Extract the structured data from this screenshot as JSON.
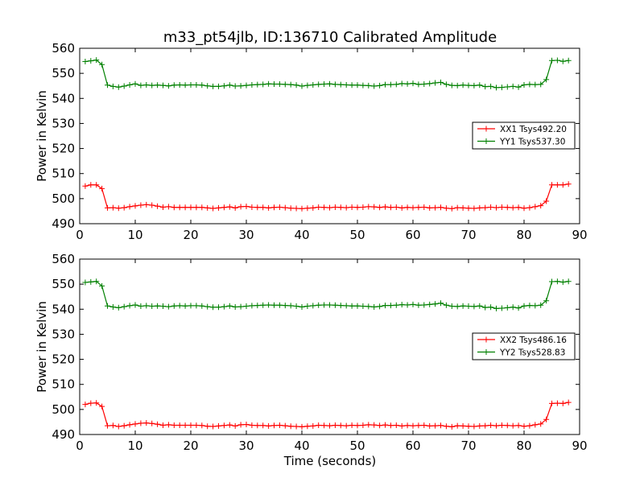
{
  "figure": {
    "title": "m33_pt54jlb, ID:136710 Calibrated Amplitude",
    "xlabel": "Time (seconds)"
  },
  "chart_data": [
    {
      "type": "line",
      "ylabel": "Power in Kelvin",
      "xlim": [
        0,
        90
      ],
      "ylim": [
        490,
        560
      ],
      "xticks": [
        0,
        10,
        20,
        30,
        40,
        50,
        60,
        70,
        80,
        90
      ],
      "yticks": [
        490,
        500,
        510,
        520,
        530,
        540,
        550,
        560
      ],
      "legend_position": "right",
      "series": [
        {
          "name": "XX1 Tsys492.20",
          "color": "#ff0000",
          "x": [
            1,
            2,
            3,
            4,
            5,
            6,
            7,
            8,
            9,
            10,
            11,
            12,
            13,
            14,
            15,
            16,
            17,
            18,
            19,
            20,
            21,
            22,
            23,
            24,
            25,
            26,
            27,
            28,
            29,
            30,
            31,
            32,
            33,
            34,
            35,
            36,
            37,
            38,
            39,
            40,
            41,
            42,
            43,
            44,
            45,
            46,
            47,
            48,
            49,
            50,
            51,
            52,
            53,
            54,
            55,
            56,
            57,
            58,
            59,
            60,
            61,
            62,
            63,
            64,
            65,
            66,
            67,
            68,
            69,
            70,
            71,
            72,
            73,
            74,
            75,
            76,
            77,
            78,
            79,
            80,
            81,
            82,
            83,
            84,
            85,
            86,
            87,
            88
          ],
          "y": [
            505,
            505.5,
            505.5,
            504,
            496.3,
            496.4,
            496.2,
            496.4,
            496.8,
            497.1,
            497.4,
            497.6,
            497.4,
            497,
            496.6,
            496.8,
            496.5,
            496.5,
            496.5,
            496.5,
            496.5,
            496.5,
            496.3,
            496.1,
            496.3,
            496.5,
            496.7,
            496.3,
            496.8,
            496.9,
            496.6,
            496.5,
            496.5,
            496.3,
            496.5,
            496.6,
            496.4,
            496.2,
            496.1,
            496,
            496.2,
            496.3,
            496.6,
            496.5,
            496.4,
            496.6,
            496.5,
            496.4,
            496.6,
            496.5,
            496.6,
            496.8,
            496.7,
            496.5,
            496.7,
            496.5,
            496.6,
            496.3,
            496.5,
            496.4,
            496.5,
            496.6,
            496.3,
            496.4,
            496.5,
            496.2,
            496,
            496.4,
            496.3,
            496.2,
            496.1,
            496.3,
            496.4,
            496.6,
            496.4,
            496.6,
            496.5,
            496.4,
            496.5,
            496.2,
            496.4,
            496.8,
            497.2,
            499,
            505.5,
            505.5,
            505.5,
            505.8
          ]
        },
        {
          "name": "YY1 Tsys537.30",
          "color": "#008000",
          "x": [
            1,
            2,
            3,
            4,
            5,
            6,
            7,
            8,
            9,
            10,
            11,
            12,
            13,
            14,
            15,
            16,
            17,
            18,
            19,
            20,
            21,
            22,
            23,
            24,
            25,
            26,
            27,
            28,
            29,
            30,
            31,
            32,
            33,
            34,
            35,
            36,
            37,
            38,
            39,
            40,
            41,
            42,
            43,
            44,
            45,
            46,
            47,
            48,
            49,
            50,
            51,
            52,
            53,
            54,
            55,
            56,
            57,
            58,
            59,
            60,
            61,
            62,
            63,
            64,
            65,
            66,
            67,
            68,
            69,
            70,
            71,
            72,
            73,
            74,
            75,
            76,
            77,
            78,
            79,
            80,
            81,
            82,
            83,
            84,
            85,
            86,
            87,
            88
          ],
          "y": [
            554.7,
            555,
            555.3,
            553.5,
            545.3,
            544.8,
            544.5,
            544.9,
            545.4,
            545.8,
            545.2,
            545.4,
            545.2,
            545.3,
            545.2,
            545,
            545.3,
            545.4,
            545.3,
            545.4,
            545.4,
            545.3,
            545,
            544.8,
            544.8,
            545,
            545.3,
            544.9,
            545,
            545.2,
            545.4,
            545.5,
            545.6,
            545.8,
            545.7,
            545.7,
            545.6,
            545.5,
            545.3,
            544.9,
            545.2,
            545.4,
            545.6,
            545.7,
            545.8,
            545.6,
            545.5,
            545.4,
            545.3,
            545.3,
            545.2,
            545.1,
            544.9,
            545.1,
            545.5,
            545.5,
            545.6,
            545.9,
            545.8,
            546,
            545.6,
            545.7,
            545.9,
            546.2,
            546.4,
            545.6,
            545.2,
            545.1,
            545.3,
            545.2,
            545.1,
            545.3,
            544.7,
            544.8,
            544.3,
            544.4,
            544.6,
            544.8,
            544.5,
            545.4,
            545.6,
            545.5,
            545.6,
            547.5,
            555.1,
            555.2,
            554.8,
            555.1
          ]
        }
      ]
    },
    {
      "type": "line",
      "ylabel": "Power in Kelvin",
      "xlim": [
        0,
        90
      ],
      "ylim": [
        490,
        560
      ],
      "xticks": [
        0,
        10,
        20,
        30,
        40,
        50,
        60,
        70,
        80,
        90
      ],
      "yticks": [
        490,
        500,
        510,
        520,
        530,
        540,
        550,
        560
      ],
      "legend_position": "right",
      "series": [
        {
          "name": "XX2 Tsys486.16",
          "color": "#ff0000",
          "x": [
            1,
            2,
            3,
            4,
            5,
            6,
            7,
            8,
            9,
            10,
            11,
            12,
            13,
            14,
            15,
            16,
            17,
            18,
            19,
            20,
            21,
            22,
            23,
            24,
            25,
            26,
            27,
            28,
            29,
            30,
            31,
            32,
            33,
            34,
            35,
            36,
            37,
            38,
            39,
            40,
            41,
            42,
            43,
            44,
            45,
            46,
            47,
            48,
            49,
            50,
            51,
            52,
            53,
            54,
            55,
            56,
            57,
            58,
            59,
            60,
            61,
            62,
            63,
            64,
            65,
            66,
            67,
            68,
            69,
            70,
            71,
            72,
            73,
            74,
            75,
            76,
            77,
            78,
            79,
            80,
            81,
            82,
            83,
            84,
            85,
            86,
            87,
            88
          ],
          "y": [
            502,
            502.5,
            502.6,
            501.2,
            493.5,
            493.6,
            493.2,
            493.5,
            493.9,
            494.2,
            494.5,
            494.6,
            494.4,
            494.1,
            493.7,
            493.9,
            493.7,
            493.7,
            493.7,
            493.7,
            493.7,
            493.6,
            493.3,
            493.2,
            493.4,
            493.6,
            493.8,
            493.4,
            493.9,
            494,
            493.7,
            493.6,
            493.6,
            493.4,
            493.6,
            493.7,
            493.5,
            493.3,
            493.2,
            493.1,
            493.3,
            493.4,
            493.7,
            493.6,
            493.5,
            493.7,
            493.6,
            493.5,
            493.7,
            493.6,
            493.7,
            493.9,
            493.8,
            493.6,
            493.8,
            493.6,
            493.7,
            493.4,
            493.6,
            493.5,
            493.6,
            493.7,
            493.4,
            493.5,
            493.6,
            493.3,
            493.1,
            493.5,
            493.4,
            493.3,
            493.2,
            493.4,
            493.5,
            493.7,
            493.5,
            493.7,
            493.6,
            493.5,
            493.6,
            493.3,
            493.5,
            493.9,
            494.2,
            496,
            502.4,
            502.5,
            502.4,
            502.8
          ]
        },
        {
          "name": "YY2 Tsys528.83",
          "color": "#008000",
          "x": [
            1,
            2,
            3,
            4,
            5,
            6,
            7,
            8,
            9,
            10,
            11,
            12,
            13,
            14,
            15,
            16,
            17,
            18,
            19,
            20,
            21,
            22,
            23,
            24,
            25,
            26,
            27,
            28,
            29,
            30,
            31,
            32,
            33,
            34,
            35,
            36,
            37,
            38,
            39,
            40,
            41,
            42,
            43,
            44,
            45,
            46,
            47,
            48,
            49,
            50,
            51,
            52,
            53,
            54,
            55,
            56,
            57,
            58,
            59,
            60,
            61,
            62,
            63,
            64,
            65,
            66,
            67,
            68,
            69,
            70,
            71,
            72,
            73,
            74,
            75,
            76,
            77,
            78,
            79,
            80,
            81,
            82,
            83,
            84,
            85,
            86,
            87,
            88
          ],
          "y": [
            550.7,
            550.9,
            551.1,
            549.3,
            541.3,
            540.9,
            540.6,
            541,
            541.4,
            541.7,
            541.2,
            541.4,
            541.2,
            541.3,
            541.2,
            541,
            541.3,
            541.4,
            541.3,
            541.4,
            541.4,
            541.3,
            541,
            540.8,
            540.8,
            541,
            541.3,
            540.9,
            541,
            541.2,
            541.4,
            541.5,
            541.6,
            541.7,
            541.6,
            541.6,
            541.5,
            541.4,
            541.2,
            540.9,
            541.2,
            541.4,
            541.6,
            541.7,
            541.7,
            541.6,
            541.5,
            541.4,
            541.3,
            541.3,
            541.2,
            541.1,
            540.9,
            541.1,
            541.5,
            541.5,
            541.6,
            541.8,
            541.7,
            541.9,
            541.6,
            541.7,
            541.9,
            542.1,
            542.4,
            541.6,
            541.2,
            541.1,
            541.3,
            541.2,
            541.1,
            541.3,
            540.7,
            540.8,
            540.3,
            540.4,
            540.6,
            540.8,
            540.5,
            541.3,
            541.5,
            541.4,
            541.6,
            543.4,
            551,
            551.1,
            550.8,
            551.1
          ]
        }
      ]
    }
  ]
}
